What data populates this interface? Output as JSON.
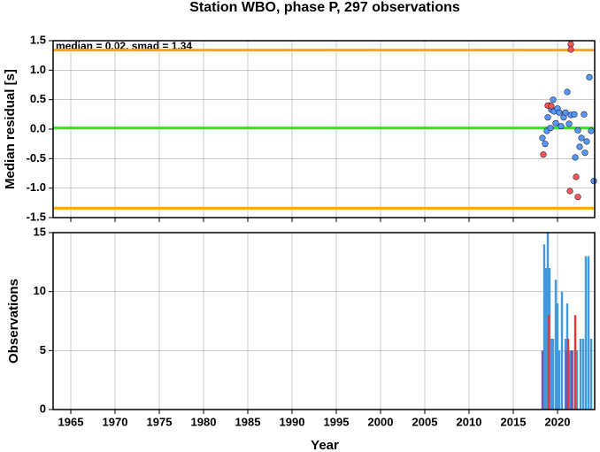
{
  "chart_data": [
    {
      "type": "scatter",
      "title": "Station WBO, phase P, 297 observations",
      "ylabel": "Median residual [s]",
      "annotation": "median = 0.02, smad = 1.34",
      "xlim": [
        1963,
        2024.2
      ],
      "ylim": [
        -1.5,
        1.5
      ],
      "yticks": [
        -1.5,
        {
          "value": -1,
          "label": "-1.0"
        },
        -0.5,
        {
          "value": 0,
          "label": "0.0"
        },
        0.5,
        {
          "value": 1,
          "label": "1.0"
        },
        1.5
      ],
      "grid": true,
      "hlines": [
        {
          "value": 1.34,
          "color": "#ffaa00"
        },
        {
          "value": -1.34,
          "color": "#ffaa00"
        },
        {
          "value": 0.02,
          "color": "#22ee22"
        }
      ],
      "series": [
        {
          "color": "#5599ff",
          "x": [
            2018.3,
            2018.6,
            2018.8,
            2018.9,
            2019.0,
            2019.2,
            2019.3,
            2019.5,
            2019.6,
            2019.8,
            2020.0,
            2020.2,
            2020.4,
            2020.7,
            2020.9,
            2021.1,
            2021.3,
            2021.5,
            2021.9,
            2022.0,
            2022.3,
            2022.5,
            2022.7,
            2023.0,
            2023.1,
            2023.3,
            2023.6,
            2023.8,
            2024.1
          ],
          "values": [
            -0.15,
            -0.25,
            -0.03,
            0.2,
            0.4,
            0.02,
            0.33,
            0.5,
            0.3,
            0.1,
            0.35,
            0.28,
            0.05,
            0.2,
            0.28,
            0.63,
            0.09,
            0.24,
            0.25,
            -0.48,
            -0.02,
            -0.3,
            -0.15,
            0.25,
            -0.4,
            -0.21,
            0.88,
            -0.03,
            -0.88
          ]
        },
        {
          "color": "#ff5555",
          "x": [
            2018.4,
            2018.9,
            2019.3,
            2021.4,
            2021.5,
            2021.5,
            2022.1,
            2022.3
          ],
          "values": [
            -0.43,
            0.4,
            0.39,
            -1.05,
            1.44,
            1.35,
            -0.81,
            -1.15
          ]
        }
      ]
    },
    {
      "type": "bar",
      "ylabel": "Observations",
      "xlabel": "Year",
      "xlim": [
        1963,
        2024.2
      ],
      "ylim": [
        0,
        15
      ],
      "xticks": [
        1965,
        1970,
        1975,
        1980,
        1985,
        1990,
        1995,
        2000,
        2005,
        2010,
        2015,
        2020
      ],
      "yticks": [
        0,
        5,
        10,
        15
      ],
      "grid": true,
      "series": [
        {
          "color": "#4499dd",
          "x": [
            2018.5,
            2018.7,
            2018.9,
            2019.1,
            2019.3,
            2019.5,
            2019.8,
            2020.0,
            2020.2,
            2020.5,
            2020.9,
            2021.1,
            2021.4,
            2021.7,
            2022.2,
            2022.6,
            2022.9,
            2023.2,
            2023.5,
            2023.8
          ],
          "values": [
            14,
            12,
            15,
            12,
            6,
            6,
            11,
            9,
            5,
            10,
            6,
            9,
            5,
            5,
            5,
            6,
            6,
            13,
            13,
            6
          ]
        },
        {
          "color": "#ee3333",
          "x": [
            2019.0,
            2021.2,
            2022.0
          ],
          "values": [
            8,
            6,
            8
          ]
        },
        {
          "color": "#7755aa",
          "x": [
            2018.3,
            2021.0,
            2021.6
          ],
          "values": [
            5,
            5,
            5
          ]
        }
      ]
    }
  ]
}
